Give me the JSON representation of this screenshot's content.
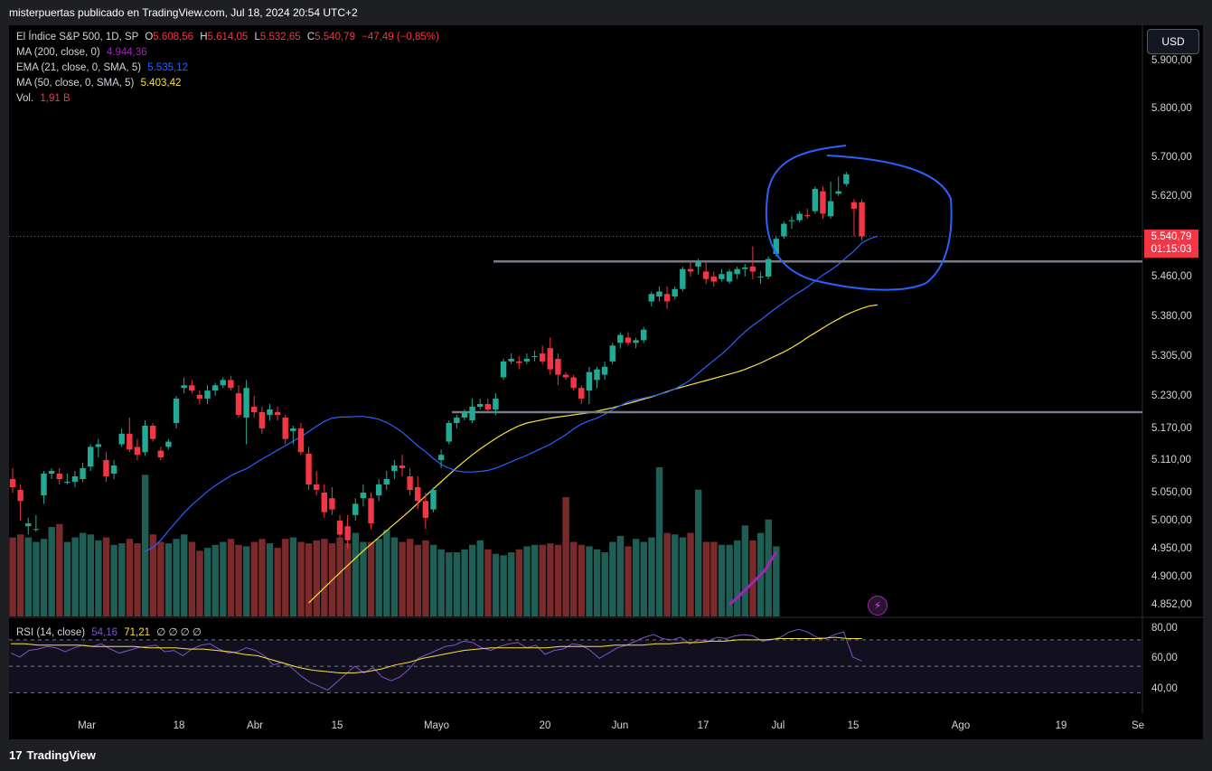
{
  "header": {
    "text": "misterpuertas publicado en TradingView.com, Jul 18, 2024 20:54 UTC+2"
  },
  "legend": {
    "main_prefix": "El Índice S&P 500, 1D, SP",
    "o_label": "O",
    "o_value": "5.608,56",
    "h_label": "H",
    "h_value": "5.614,05",
    "l_label": "L",
    "l_value": "5.532,65",
    "c_label": "C",
    "c_value": "5.540,79",
    "change": "−47,49 (−0,85%)",
    "ma200_label": "MA (200, close, 0)",
    "ma200_value": "4.944,36",
    "ema21_label": "EMA (21, close, 0, SMA, 5)",
    "ema21_value": "5.535,12",
    "ma50_label": "MA (50, close, 0, SMA, 5)",
    "ma50_value": "5.403,42",
    "vol_label": "Vol.",
    "vol_value": "1,91 B",
    "rsi_label": "RSI (14, close)",
    "rsi_value": "54,16",
    "rsi_ma_value": "71,21",
    "rsi_extra": "∅ ∅ ∅ ∅"
  },
  "controls": {
    "currency": "USD"
  },
  "price_tag": {
    "price": "5.540,79",
    "countdown": "01:15:03"
  },
  "y_axis_labels": [
    "5.900,00",
    "5.800,00",
    "5.700,00",
    "5.620,00",
    "5.460,00",
    "5.380,00",
    "5.305,00",
    "5.230,00",
    "5.170,00",
    "5.110,00",
    "5.050,00",
    "5.000,00",
    "4.950,00",
    "4.900,00",
    "4.852,00"
  ],
  "rsi_axis_labels": [
    "80,00",
    "60,00",
    "40,00"
  ],
  "x_axis_labels": [
    "Mar",
    "18",
    "Abr",
    "15",
    "Mayo",
    "20",
    "Jun",
    "17",
    "Jul",
    "15",
    "Ago",
    "19",
    "Se"
  ],
  "footer": {
    "brand": "TradingView"
  },
  "colors": {
    "up": "#22ab94",
    "down": "#f23645",
    "ema21": "#2962ff",
    "ma50": "#fbe23b",
    "ma200": "#9c27b0",
    "rsi": "#7e57c2",
    "hlines": "#787b86",
    "annotation": "#2962ff"
  },
  "chart_data": {
    "type": "candlestick",
    "title": "El Índice S&P 500, 1D, SP",
    "ylim": [
      4852,
      5960
    ],
    "rsi_ylim": [
      20,
      85
    ],
    "horizontal_lines": [
      5490,
      5200
    ],
    "candles": [
      [
        5075,
        5095,
        5050,
        5060
      ],
      [
        5055,
        5065,
        5000,
        5035
      ],
      [
        4990,
        5005,
        4975,
        4995
      ],
      [
        4985,
        5010,
        4980,
        4985
      ],
      [
        5045,
        5090,
        5030,
        5085
      ],
      [
        5085,
        5095,
        5075,
        5090
      ],
      [
        5085,
        5095,
        5065,
        5075
      ],
      [
        5068,
        5085,
        5065,
        5070
      ],
      [
        5070,
        5090,
        5060,
        5080
      ],
      [
        5075,
        5105,
        5070,
        5095
      ],
      [
        5098,
        5140,
        5090,
        5135
      ],
      [
        5135,
        5150,
        5115,
        5140
      ],
      [
        5110,
        5125,
        5070,
        5080
      ],
      [
        5085,
        5110,
        5075,
        5100
      ],
      [
        5140,
        5170,
        5135,
        5160
      ],
      [
        5160,
        5190,
        5125,
        5130
      ],
      [
        5135,
        5150,
        5110,
        5120
      ],
      [
        5125,
        5185,
        5118,
        5175
      ],
      [
        5175,
        5180,
        5145,
        5150
      ],
      [
        5128,
        5135,
        5110,
        5115
      ],
      [
        5135,
        5150,
        5130,
        5145
      ],
      [
        5180,
        5230,
        5170,
        5225
      ],
      [
        5245,
        5265,
        5235,
        5250
      ],
      [
        5250,
        5260,
        5235,
        5240
      ],
      [
        5232,
        5240,
        5215,
        5225
      ],
      [
        5225,
        5250,
        5215,
        5240
      ],
      [
        5240,
        5255,
        5230,
        5250
      ],
      [
        5250,
        5265,
        5245,
        5260
      ],
      [
        5260,
        5268,
        5240,
        5245
      ],
      [
        5235,
        5250,
        5190,
        5195
      ],
      [
        5190,
        5260,
        5140,
        5245
      ],
      [
        5210,
        5230,
        5190,
        5200
      ],
      [
        5200,
        5210,
        5160,
        5170
      ],
      [
        5195,
        5215,
        5185,
        5205
      ],
      [
        5200,
        5210,
        5185,
        5195
      ],
      [
        5190,
        5195,
        5140,
        5150
      ],
      [
        5165,
        5175,
        5140,
        5170
      ],
      [
        5170,
        5180,
        5120,
        5125
      ],
      [
        5122,
        5135,
        5055,
        5065
      ],
      [
        5065,
        5090,
        5045,
        5055
      ],
      [
        5050,
        5065,
        5005,
        5015
      ],
      [
        5040,
        5060,
        5010,
        5020
      ],
      [
        5000,
        5010,
        4970,
        4975
      ],
      [
        4990,
        5010,
        4950,
        4965
      ],
      [
        5010,
        5040,
        5000,
        5030
      ],
      [
        5040,
        5065,
        5025,
        5050
      ],
      [
        5040,
        5050,
        4985,
        4995
      ],
      [
        5045,
        5075,
        5035,
        5065
      ],
      [
        5065,
        5090,
        5055,
        5075
      ],
      [
        5090,
        5110,
        5075,
        5100
      ],
      [
        5100,
        5120,
        5080,
        5095
      ],
      [
        5080,
        5095,
        5045,
        5055
      ],
      [
        5060,
        5080,
        5020,
        5035
      ],
      [
        5035,
        5050,
        4985,
        5005
      ],
      [
        5020,
        5060,
        5015,
        5055
      ],
      [
        5110,
        5130,
        5095,
        5120
      ],
      [
        5145,
        5185,
        5140,
        5180
      ],
      [
        5180,
        5195,
        5170,
        5190
      ],
      [
        5190,
        5205,
        5185,
        5200
      ],
      [
        5185,
        5225,
        5180,
        5210
      ],
      [
        5210,
        5225,
        5205,
        5215
      ],
      [
        5215,
        5225,
        5200,
        5205
      ],
      [
        5205,
        5235,
        5195,
        5225
      ],
      [
        5265,
        5300,
        5260,
        5295
      ],
      [
        5295,
        5310,
        5290,
        5300
      ],
      [
        5295,
        5305,
        5280,
        5292
      ],
      [
        5295,
        5310,
        5290,
        5300
      ],
      [
        5305,
        5315,
        5295,
        5305
      ],
      [
        5310,
        5325,
        5290,
        5295
      ],
      [
        5320,
        5340,
        5270,
        5280
      ],
      [
        5300,
        5310,
        5250,
        5270
      ],
      [
        5270,
        5275,
        5260,
        5265
      ],
      [
        5265,
        5270,
        5240,
        5245
      ],
      [
        5245,
        5250,
        5215,
        5225
      ],
      [
        5240,
        5285,
        5215,
        5275
      ],
      [
        5260,
        5285,
        5245,
        5280
      ],
      [
        5270,
        5295,
        5260,
        5285
      ],
      [
        5295,
        5330,
        5290,
        5325
      ],
      [
        5330,
        5350,
        5320,
        5345
      ],
      [
        5340,
        5350,
        5325,
        5330
      ],
      [
        5330,
        5340,
        5320,
        5335
      ],
      [
        5335,
        5360,
        5330,
        5355
      ],
      [
        5410,
        5430,
        5400,
        5425
      ],
      [
        5420,
        5440,
        5410,
        5430
      ],
      [
        5425,
        5440,
        5395,
        5410
      ],
      [
        5420,
        5440,
        5415,
        5435
      ],
      [
        5435,
        5480,
        5430,
        5475
      ],
      [
        5475,
        5490,
        5460,
        5470
      ],
      [
        5480,
        5495,
        5465,
        5490
      ],
      [
        5470,
        5490,
        5445,
        5455
      ],
      [
        5460,
        5470,
        5440,
        5450
      ],
      [
        5455,
        5475,
        5450,
        5465
      ],
      [
        5450,
        5475,
        5445,
        5470
      ],
      [
        5465,
        5480,
        5455,
        5475
      ],
      [
        5475,
        5485,
        5460,
        5478
      ],
      [
        5480,
        5520,
        5455,
        5470
      ],
      [
        5460,
        5470,
        5445,
        5460
      ],
      [
        5460,
        5500,
        5455,
        5495
      ],
      [
        5505,
        5540,
        5500,
        5535
      ],
      [
        5540,
        5570,
        5535,
        5565
      ],
      [
        5570,
        5580,
        5555,
        5572
      ],
      [
        5572,
        5590,
        5568,
        5585
      ],
      [
        5582,
        5595,
        5575,
        5580
      ],
      [
        5590,
        5640,
        5585,
        5635
      ],
      [
        5630,
        5640,
        5575,
        5585
      ],
      [
        5580,
        5650,
        5575,
        5610
      ],
      [
        5625,
        5660,
        5620,
        5630
      ],
      [
        5645,
        5670,
        5640,
        5665
      ],
      [
        5608,
        5614,
        5540,
        5595
      ],
      [
        5608,
        5614,
        5532,
        5540
      ]
    ],
    "ema21": [
      4945,
      4952,
      4965,
      4982,
      4998,
      5014,
      5028,
      5040,
      5052,
      5063,
      5072,
      5081,
      5088,
      5094,
      5103,
      5112,
      5120,
      5129,
      5137,
      5146,
      5154,
      5164,
      5174,
      5183,
      5189,
      5191,
      5191,
      5192,
      5192,
      5190,
      5187,
      5181,
      5173,
      5163,
      5150,
      5137,
      5126,
      5113,
      5102,
      5095,
      5090,
      5088,
      5088,
      5089,
      5091,
      5095,
      5101,
      5107,
      5113,
      5119,
      5126,
      5133,
      5140,
      5149,
      5158,
      5169,
      5178,
      5184,
      5189,
      5196,
      5205,
      5212,
      5219,
      5223,
      5226,
      5229,
      5233,
      5237,
      5243,
      5251,
      5260,
      5273,
      5285,
      5297,
      5309,
      5322,
      5337,
      5351,
      5363,
      5373,
      5385,
      5397,
      5408,
      5419,
      5429,
      5439,
      5451,
      5463,
      5473,
      5484,
      5498,
      5511,
      5527,
      5535,
      5540
    ],
    "ma50": [
      4855,
      4868,
      4881,
      4894,
      4907,
      4920,
      4933,
      4946,
      4958,
      4970,
      4982,
      4994,
      5006,
      5018,
      5031,
      5044,
      5057,
      5070,
      5083,
      5096,
      5108,
      5120,
      5131,
      5141,
      5151,
      5160,
      5168,
      5175,
      5180,
      5183,
      5186,
      5189,
      5191,
      5193,
      5195,
      5197,
      5199,
      5202,
      5205,
      5208,
      5212,
      5216,
      5220,
      5224,
      5228,
      5233,
      5238,
      5243,
      5247,
      5251,
      5255,
      5259,
      5263,
      5267,
      5271,
      5275,
      5280,
      5286,
      5292,
      5299,
      5306,
      5313,
      5321,
      5330,
      5340,
      5349,
      5358,
      5367,
      5375,
      5383,
      5390,
      5396,
      5401,
      5403
    ],
    "ma200": [
      4852,
      4870,
      4890,
      4910,
      4944
    ],
    "volume": [
      0.53,
      0.55,
      0.53,
      0.5,
      0.52,
      0.6,
      0.62,
      0.5,
      0.53,
      0.56,
      0.55,
      0.51,
      0.53,
      0.48,
      0.49,
      0.52,
      0.49,
      0.95,
      0.55,
      0.5,
      0.49,
      0.52,
      0.55,
      0.5,
      0.44,
      0.46,
      0.48,
      0.5,
      0.52,
      0.48,
      0.47,
      0.5,
      0.52,
      0.49,
      0.46,
      0.52,
      0.53,
      0.5,
      0.49,
      0.51,
      0.52,
      0.49,
      0.53,
      0.49,
      0.56,
      0.5,
      0.5,
      0.52,
      0.58,
      0.53,
      0.5,
      0.52,
      0.48,
      0.51,
      0.48,
      0.45,
      0.43,
      0.43,
      0.45,
      0.48,
      0.51,
      0.45,
      0.42,
      0.41,
      0.43,
      0.45,
      0.47,
      0.48,
      0.48,
      0.49,
      0.48,
      0.8,
      0.5,
      0.48,
      0.47,
      0.45,
      0.43,
      0.5,
      0.54,
      0.47,
      0.52,
      0.5,
      0.53,
      1.0,
      0.56,
      0.55,
      0.53,
      0.56,
      0.85,
      0.5,
      0.5,
      0.48,
      0.48,
      0.51,
      0.61,
      0.51,
      0.56,
      0.65,
      0.47
    ],
    "rsi": [
      60,
      57,
      62,
      63,
      65,
      64,
      61,
      64,
      66,
      65,
      67,
      63,
      60,
      62,
      64,
      65,
      66,
      61,
      62,
      58,
      63,
      66,
      67,
      63,
      60,
      61,
      64,
      62,
      58,
      51,
      53,
      49,
      43,
      38,
      35,
      32,
      38,
      44,
      50,
      45,
      49,
      42,
      39,
      42,
      48,
      56,
      59,
      62,
      65,
      66,
      69,
      68,
      64,
      62,
      65,
      67,
      68,
      64,
      66,
      59,
      62,
      63,
      67,
      66,
      62,
      56,
      60,
      64,
      66,
      69,
      72,
      74,
      71,
      70,
      72,
      67,
      70,
      69,
      72,
      71,
      73,
      74,
      73,
      69,
      70,
      72,
      76,
      78,
      76,
      72,
      71,
      74,
      76,
      57,
      54
    ],
    "rsi_ma": [
      67,
      67,
      66,
      66,
      66,
      66,
      65,
      65,
      65,
      65,
      64,
      64,
      64,
      63,
      63,
      62,
      61,
      59,
      58,
      55,
      52,
      49,
      47,
      46,
      45,
      45,
      46,
      48,
      51,
      53,
      56,
      58,
      60,
      62,
      63,
      64,
      64,
      64,
      64,
      64,
      65,
      65,
      65,
      65,
      66,
      66,
      66,
      67,
      67,
      68,
      68,
      69,
      69,
      70,
      70,
      70,
      71,
      71,
      71,
      71,
      72,
      71,
      71
    ]
  }
}
